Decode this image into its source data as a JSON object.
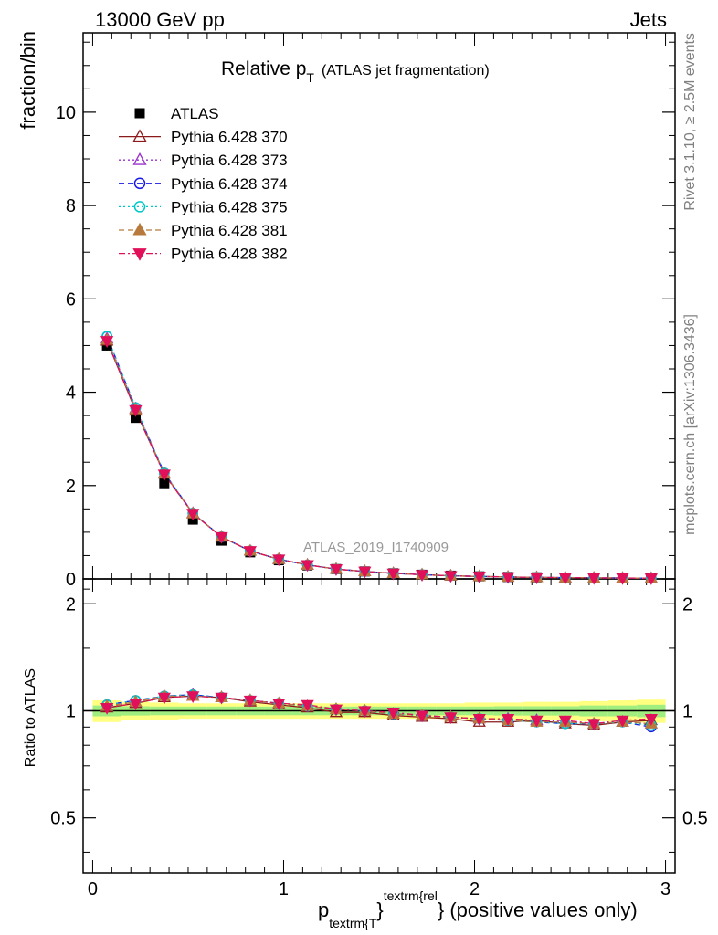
{
  "header": {
    "left": "13000 GeV pp",
    "right": "Jets"
  },
  "side_text": {
    "rivet": "Rivet 3.1.10, ≥ 2.5M events",
    "mcplots": "mcplots.cern.ch [arXiv:1306.3436]"
  },
  "chart_data": [
    {
      "type": "line",
      "title_main": "Relative p",
      "title_sub": "T",
      "title_paren": "(ATLAS jet fragmentation)",
      "ylabel": "fraction/bin",
      "watermark": "ATLAS_2019_I1740909",
      "xlim": [
        -0.05,
        3.05
      ],
      "ylim": [
        0,
        11.7
      ],
      "yticks": [
        0,
        2,
        4,
        6,
        8,
        10
      ],
      "yticklabels": [
        "0",
        "2",
        "4",
        "6",
        "8",
        "10"
      ],
      "legend_position": "top-left",
      "x": [
        0.075,
        0.225,
        0.375,
        0.525,
        0.675,
        0.825,
        0.975,
        1.125,
        1.275,
        1.425,
        1.575,
        1.725,
        1.875,
        2.025,
        2.175,
        2.325,
        2.475,
        2.625,
        2.775,
        2.925
      ],
      "data": {
        "name": "ATLAS",
        "values": [
          5.0,
          3.45,
          2.05,
          1.27,
          0.82,
          0.57,
          0.4,
          0.29,
          0.21,
          0.16,
          0.12,
          0.09,
          0.07,
          0.055,
          0.042,
          0.034,
          0.028,
          0.023,
          0.019,
          0.016
        ]
      },
      "series": [
        {
          "name": "Pythia 6.428 370",
          "color": "#8b1a1a",
          "marker": "triangle-up-open",
          "dash": "solid",
          "values": [
            5.1,
            3.6,
            2.25,
            1.4,
            0.9,
            0.6,
            0.42,
            0.3,
            0.21,
            0.16,
            0.12,
            0.09,
            0.066,
            0.052,
            0.04,
            0.032,
            0.026,
            0.021,
            0.018,
            0.015
          ]
        },
        {
          "name": "Pythia 6.428 373",
          "color": "#9932cc",
          "marker": "triangle-up-open",
          "dash": "dotted",
          "values": [
            5.15,
            3.65,
            2.26,
            1.41,
            0.9,
            0.6,
            0.42,
            0.3,
            0.21,
            0.16,
            0.12,
            0.09,
            0.067,
            0.053,
            0.041,
            0.032,
            0.026,
            0.021,
            0.018,
            0.015
          ]
        },
        {
          "name": "Pythia 6.428 374",
          "color": "#1a1ae6",
          "marker": "circle-open",
          "dash": "dashed",
          "values": [
            5.2,
            3.67,
            2.27,
            1.41,
            0.9,
            0.6,
            0.42,
            0.3,
            0.21,
            0.16,
            0.12,
            0.09,
            0.067,
            0.053,
            0.041,
            0.032,
            0.026,
            0.021,
            0.018,
            0.015
          ]
        },
        {
          "name": "Pythia 6.428 375",
          "color": "#00c8c8",
          "marker": "circle-open",
          "dash": "dotted",
          "values": [
            5.2,
            3.67,
            2.27,
            1.41,
            0.9,
            0.6,
            0.42,
            0.3,
            0.21,
            0.16,
            0.12,
            0.09,
            0.067,
            0.053,
            0.041,
            0.032,
            0.026,
            0.021,
            0.018,
            0.015
          ]
        },
        {
          "name": "Pythia 6.428 381",
          "color": "#b87a3c",
          "marker": "triangle-up-filled",
          "dash": "dashed",
          "values": [
            5.12,
            3.63,
            2.25,
            1.4,
            0.9,
            0.6,
            0.42,
            0.3,
            0.21,
            0.16,
            0.12,
            0.09,
            0.067,
            0.053,
            0.041,
            0.032,
            0.026,
            0.021,
            0.018,
            0.015
          ]
        },
        {
          "name": "Pythia 6.428 382",
          "color": "#e0105a",
          "marker": "triangle-down-filled",
          "dash": "dashdot",
          "values": [
            5.1,
            3.62,
            2.24,
            1.4,
            0.9,
            0.6,
            0.42,
            0.3,
            0.21,
            0.16,
            0.12,
            0.09,
            0.067,
            0.053,
            0.041,
            0.032,
            0.026,
            0.021,
            0.018,
            0.015
          ]
        }
      ]
    },
    {
      "type": "line",
      "ylabel": "Ratio to ATLAS",
      "xlabel_main": "p",
      "xlabel_sub": "textrm{T",
      "xlabel_sup": "textrm{rel",
      "xlabel_brace1": "}",
      "xlabel_brace2": "}",
      "xlabel_rest": " (positive values only)",
      "xlim": [
        -0.05,
        3.05
      ],
      "ylim": [
        0.35,
        2.35
      ],
      "log_y": true,
      "xticks": [
        0,
        1,
        2,
        3
      ],
      "xticklabels": [
        "0",
        "1",
        "2",
        "3"
      ],
      "yticks": [
        0.5,
        1,
        2
      ],
      "yticklabels": [
        "0.5",
        "1",
        "2"
      ],
      "band_stat": [
        0.035,
        0.03,
        0.028,
        0.028,
        0.028,
        0.028,
        0.028,
        0.028,
        0.028,
        0.028,
        0.028,
        0.028,
        0.028,
        0.028,
        0.03,
        0.03,
        0.03,
        0.035,
        0.035,
        0.04
      ],
      "band_total": [
        0.07,
        0.06,
        0.055,
        0.05,
        0.05,
        0.05,
        0.05,
        0.05,
        0.05,
        0.05,
        0.05,
        0.05,
        0.05,
        0.055,
        0.055,
        0.06,
        0.06,
        0.065,
        0.07,
        0.075
      ],
      "series": [
        {
          "name": "Pythia 6.428 370",
          "values": [
            1.02,
            1.05,
            1.09,
            1.1,
            1.09,
            1.06,
            1.04,
            1.02,
            0.99,
            0.99,
            0.97,
            0.96,
            0.95,
            0.93,
            0.93,
            0.94,
            0.92,
            0.91,
            0.93,
            0.94
          ]
        },
        {
          "name": "Pythia 6.428 373",
          "values": [
            1.03,
            1.06,
            1.1,
            1.11,
            1.09,
            1.07,
            1.05,
            1.03,
            1.01,
            1.0,
            0.98,
            0.97,
            0.96,
            0.95,
            0.95,
            0.94,
            0.93,
            0.92,
            0.93,
            0.92
          ]
        },
        {
          "name": "Pythia 6.428 374",
          "values": [
            1.04,
            1.07,
            1.1,
            1.11,
            1.09,
            1.07,
            1.05,
            1.03,
            1.01,
            1.0,
            0.98,
            0.97,
            0.96,
            0.95,
            0.94,
            0.93,
            0.92,
            0.92,
            0.93,
            0.9
          ]
        },
        {
          "name": "Pythia 6.428 375",
          "values": [
            1.04,
            1.07,
            1.1,
            1.11,
            1.09,
            1.07,
            1.05,
            1.03,
            1.01,
            1.0,
            0.98,
            0.97,
            0.96,
            0.95,
            0.94,
            0.93,
            0.92,
            0.92,
            0.93,
            0.91
          ]
        },
        {
          "name": "Pythia 6.428 381",
          "values": [
            1.03,
            1.06,
            1.1,
            1.1,
            1.09,
            1.07,
            1.05,
            1.03,
            1.01,
            1.0,
            0.98,
            0.97,
            0.96,
            0.95,
            0.94,
            0.93,
            0.93,
            0.92,
            0.93,
            0.92
          ]
        },
        {
          "name": "Pythia 6.428 382",
          "values": [
            1.02,
            1.05,
            1.09,
            1.1,
            1.09,
            1.07,
            1.05,
            1.04,
            1.01,
            1.0,
            0.99,
            0.97,
            0.96,
            0.95,
            0.95,
            0.94,
            0.94,
            0.92,
            0.94,
            0.95
          ]
        }
      ]
    }
  ]
}
